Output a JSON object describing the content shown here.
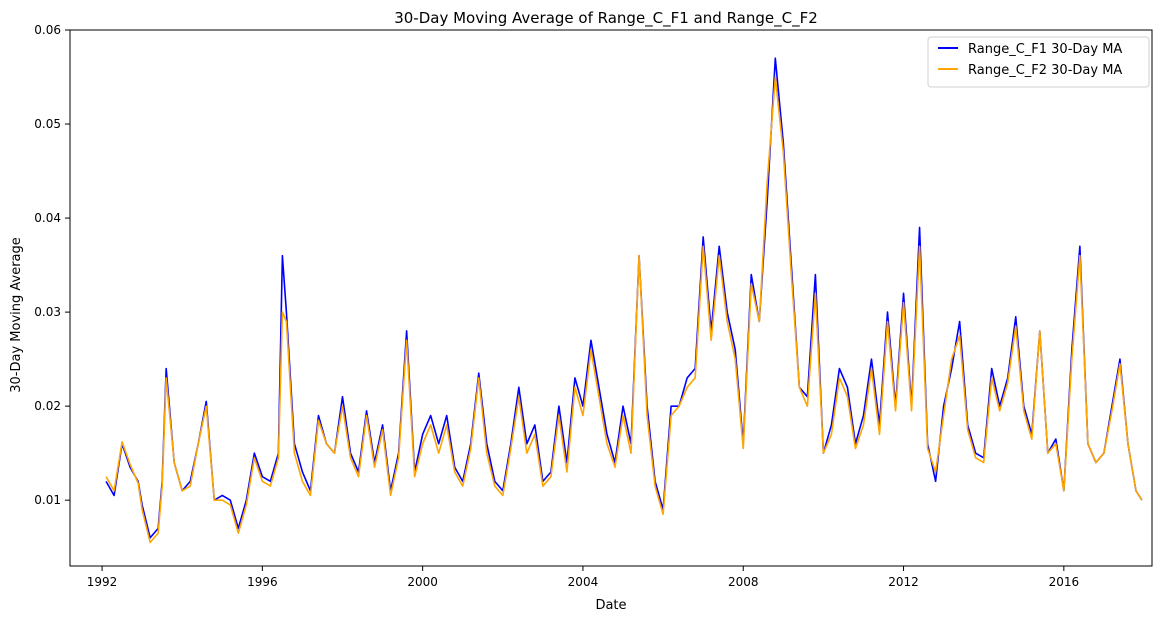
{
  "chart_data": {
    "type": "line",
    "title": "30-Day Moving Average of Range_C_F1 and Range_C_F2",
    "xlabel": "Date",
    "ylabel": "30-Day Moving Average",
    "xlim": [
      1991.2,
      2018.2
    ],
    "ylim": [
      0.003,
      0.06
    ],
    "xticks": [
      1992,
      1996,
      2000,
      2004,
      2008,
      2012,
      2016
    ],
    "yticks": [
      0.01,
      0.02,
      0.03,
      0.04,
      0.05,
      0.06
    ],
    "ytick_labels": [
      "0.01",
      "0.02",
      "0.03",
      "0.04",
      "0.05",
      "0.06"
    ],
    "grid": false,
    "legend_position": "upper right",
    "series": [
      {
        "name": "Range_C_F1 30-Day MA",
        "color": "#0000ff",
        "x": [
          1992.1,
          1992.3,
          1992.5,
          1992.7,
          1992.9,
          1993.0,
          1993.2,
          1993.4,
          1993.5,
          1993.6,
          1993.8,
          1994.0,
          1994.2,
          1994.4,
          1994.6,
          1994.8,
          1995.0,
          1995.2,
          1995.4,
          1995.6,
          1995.8,
          1996.0,
          1996.2,
          1996.4,
          1996.5,
          1996.6,
          1996.8,
          1997.0,
          1997.2,
          1997.4,
          1997.6,
          1997.8,
          1998.0,
          1998.2,
          1998.4,
          1998.6,
          1998.8,
          1999.0,
          1999.2,
          1999.4,
          1999.6,
          1999.8,
          2000.0,
          2000.2,
          2000.4,
          2000.6,
          2000.8,
          2001.0,
          2001.2,
          2001.4,
          2001.6,
          2001.8,
          2002.0,
          2002.2,
          2002.4,
          2002.6,
          2002.8,
          2003.0,
          2003.2,
          2003.4,
          2003.6,
          2003.8,
          2004.0,
          2004.2,
          2004.4,
          2004.6,
          2004.8,
          2005.0,
          2005.2,
          2005.4,
          2005.6,
          2005.8,
          2006.0,
          2006.2,
          2006.4,
          2006.6,
          2006.8,
          2007.0,
          2007.2,
          2007.4,
          2007.6,
          2007.8,
          2008.0,
          2008.2,
          2008.4,
          2008.6,
          2008.8,
          2009.0,
          2009.2,
          2009.4,
          2009.6,
          2009.8,
          2010.0,
          2010.2,
          2010.4,
          2010.6,
          2010.8,
          2011.0,
          2011.2,
          2011.4,
          2011.6,
          2011.8,
          2012.0,
          2012.2,
          2012.4,
          2012.6,
          2012.8,
          2013.0,
          2013.2,
          2013.4,
          2013.6,
          2013.8,
          2014.0,
          2014.2,
          2014.4,
          2014.6,
          2014.8,
          2015.0,
          2015.2,
          2015.4,
          2015.6,
          2015.8,
          2016.0,
          2016.2,
          2016.4,
          2016.6,
          2016.8,
          2017.0,
          2017.2,
          2017.4,
          2017.6,
          2017.8,
          2017.95
        ],
        "y": [
          0.012,
          0.0105,
          0.016,
          0.0135,
          0.012,
          0.0095,
          0.006,
          0.007,
          0.012,
          0.024,
          0.014,
          0.011,
          0.012,
          0.016,
          0.0205,
          0.01,
          0.0105,
          0.01,
          0.007,
          0.01,
          0.015,
          0.0125,
          0.012,
          0.015,
          0.036,
          0.03,
          0.016,
          0.013,
          0.011,
          0.019,
          0.016,
          0.015,
          0.021,
          0.015,
          0.013,
          0.0195,
          0.014,
          0.018,
          0.011,
          0.015,
          0.028,
          0.013,
          0.017,
          0.019,
          0.016,
          0.019,
          0.0135,
          0.012,
          0.016,
          0.0235,
          0.016,
          0.012,
          0.011,
          0.016,
          0.022,
          0.016,
          0.018,
          0.012,
          0.013,
          0.02,
          0.014,
          0.023,
          0.02,
          0.027,
          0.022,
          0.017,
          0.014,
          0.02,
          0.016,
          0.036,
          0.02,
          0.012,
          0.009,
          0.02,
          0.02,
          0.023,
          0.024,
          0.038,
          0.028,
          0.037,
          0.03,
          0.026,
          0.016,
          0.034,
          0.029,
          0.042,
          0.057,
          0.048,
          0.035,
          0.022,
          0.021,
          0.034,
          0.015,
          0.018,
          0.024,
          0.022,
          0.016,
          0.019,
          0.025,
          0.018,
          0.03,
          0.02,
          0.032,
          0.02,
          0.039,
          0.016,
          0.012,
          0.02,
          0.024,
          0.029,
          0.018,
          0.015,
          0.0145,
          0.024,
          0.02,
          0.023,
          0.0295,
          0.02,
          0.017,
          0.028,
          0.015,
          0.0165,
          0.011,
          0.026,
          0.037,
          0.016,
          0.014,
          0.015,
          0.02,
          0.025,
          0.016,
          0.011,
          0.01
        ],
        "y_min": 0.005,
        "y_max": 0.0575
      },
      {
        "name": "Range_C_F2 30-Day MA",
        "color": "#ffa500",
        "x": [
          1992.1,
          1992.3,
          1992.5,
          1992.7,
          1992.9,
          1993.0,
          1993.2,
          1993.4,
          1993.5,
          1993.6,
          1993.8,
          1994.0,
          1994.2,
          1994.4,
          1994.6,
          1994.8,
          1995.0,
          1995.2,
          1995.4,
          1995.6,
          1995.8,
          1996.0,
          1996.2,
          1996.4,
          1996.5,
          1996.6,
          1996.8,
          1997.0,
          1997.2,
          1997.4,
          1997.6,
          1997.8,
          1998.0,
          1998.2,
          1998.4,
          1998.6,
          1998.8,
          1999.0,
          1999.2,
          1999.4,
          1999.6,
          1999.8,
          2000.0,
          2000.2,
          2000.4,
          2000.6,
          2000.8,
          2001.0,
          2001.2,
          2001.4,
          2001.6,
          2001.8,
          2002.0,
          2002.2,
          2002.4,
          2002.6,
          2002.8,
          2003.0,
          2003.2,
          2003.4,
          2003.6,
          2003.8,
          2004.0,
          2004.2,
          2004.4,
          2004.6,
          2004.8,
          2005.0,
          2005.2,
          2005.4,
          2005.6,
          2005.8,
          2006.0,
          2006.2,
          2006.4,
          2006.6,
          2006.8,
          2007.0,
          2007.2,
          2007.4,
          2007.6,
          2007.8,
          2008.0,
          2008.2,
          2008.4,
          2008.6,
          2008.8,
          2009.0,
          2009.2,
          2009.4,
          2009.6,
          2009.8,
          2010.0,
          2010.2,
          2010.4,
          2010.6,
          2010.8,
          2011.0,
          2011.2,
          2011.4,
          2011.6,
          2011.8,
          2012.0,
          2012.2,
          2012.4,
          2012.6,
          2012.8,
          2013.0,
          2013.2,
          2013.4,
          2013.6,
          2013.8,
          2014.0,
          2014.2,
          2014.4,
          2014.6,
          2014.8,
          2015.0,
          2015.2,
          2015.4,
          2015.6,
          2015.8,
          2016.0,
          2016.2,
          2016.4,
          2016.6,
          2016.8,
          2017.0,
          2017.2,
          2017.4,
          2017.6,
          2017.8,
          2017.95
        ],
        "y": [
          0.0125,
          0.011,
          0.0162,
          0.0138,
          0.0118,
          0.009,
          0.0055,
          0.0065,
          0.0115,
          0.023,
          0.014,
          0.011,
          0.0115,
          0.016,
          0.02,
          0.01,
          0.01,
          0.0095,
          0.0065,
          0.0095,
          0.0145,
          0.012,
          0.0115,
          0.0145,
          0.03,
          0.029,
          0.015,
          0.012,
          0.0105,
          0.0185,
          0.016,
          0.015,
          0.02,
          0.0145,
          0.0125,
          0.019,
          0.0135,
          0.0175,
          0.0105,
          0.0145,
          0.027,
          0.0125,
          0.016,
          0.018,
          0.015,
          0.018,
          0.013,
          0.0115,
          0.0155,
          0.023,
          0.015,
          0.0115,
          0.0105,
          0.0155,
          0.021,
          0.015,
          0.017,
          0.0115,
          0.0125,
          0.019,
          0.013,
          0.022,
          0.019,
          0.026,
          0.021,
          0.016,
          0.0135,
          0.019,
          0.015,
          0.036,
          0.019,
          0.0115,
          0.0085,
          0.019,
          0.02,
          0.022,
          0.023,
          0.037,
          0.027,
          0.036,
          0.029,
          0.025,
          0.0155,
          0.033,
          0.029,
          0.044,
          0.055,
          0.047,
          0.034,
          0.022,
          0.02,
          0.032,
          0.015,
          0.017,
          0.023,
          0.021,
          0.0155,
          0.018,
          0.024,
          0.017,
          0.029,
          0.0195,
          0.031,
          0.0195,
          0.037,
          0.0155,
          0.013,
          0.019,
          0.025,
          0.0275,
          0.0175,
          0.0145,
          0.014,
          0.023,
          0.0195,
          0.0225,
          0.0285,
          0.0195,
          0.0165,
          0.028,
          0.015,
          0.016,
          0.011,
          0.025,
          0.036,
          0.016,
          0.014,
          0.015,
          0.0195,
          0.0245,
          0.016,
          0.011,
          0.01
        ],
        "y_min": 0.0052,
        "y_max": 0.055
      }
    ]
  }
}
